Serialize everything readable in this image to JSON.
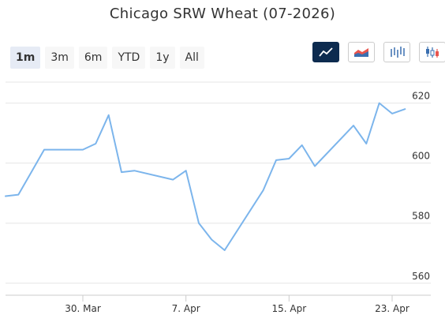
{
  "header": {
    "title": "Chicago SRW Wheat (07-2026)"
  },
  "range_selector": {
    "buttons": [
      {
        "label": "1m",
        "active": true
      },
      {
        "label": "3m",
        "active": false
      },
      {
        "label": "6m",
        "active": false
      },
      {
        "label": "YTD",
        "active": false
      },
      {
        "label": "1y",
        "active": false
      },
      {
        "label": "All",
        "active": false
      }
    ]
  },
  "chart_type_buttons": [
    {
      "icon": "line-chart-icon",
      "active": true
    },
    {
      "icon": "area-chart-icon",
      "active": false
    },
    {
      "icon": "ohlc-chart-icon",
      "active": false
    },
    {
      "icon": "candlestick-chart-icon",
      "active": false
    }
  ],
  "colors": {
    "line": "#7cb5ec",
    "active_button": "#0d2b4f",
    "grid": "#e6e6e6"
  },
  "chart_data": {
    "type": "line",
    "title": "Chicago SRW Wheat (07-2026)",
    "xlabel": "",
    "ylabel": "",
    "x_tick_labels": [
      "30. Mar",
      "7. Apr",
      "15. Apr",
      "23. Apr"
    ],
    "x_ticks": [
      "2026-03-30",
      "2026-04-07",
      "2026-04-15",
      "2026-04-23"
    ],
    "y_ticks": [
      560,
      580,
      600,
      620
    ],
    "xlim": [
      "2026-03-24",
      "2026-04-26"
    ],
    "ylim": [
      556,
      627
    ],
    "grid": true,
    "series": [
      {
        "name": "",
        "x": [
          "2026-03-24",
          "2026-03-25",
          "2026-03-26",
          "2026-03-27",
          "2026-03-30",
          "2026-03-31",
          "2026-04-01",
          "2026-04-02",
          "2026-04-03",
          "2026-04-06",
          "2026-04-07",
          "2026-04-08",
          "2026-04-09",
          "2026-04-10",
          "2026-04-13",
          "2026-04-14",
          "2026-04-15",
          "2026-04-16",
          "2026-04-17",
          "2026-04-20",
          "2026-04-21",
          "2026-04-22",
          "2026-04-23",
          "2026-04-24"
        ],
        "values": [
          589,
          589.5,
          597,
          604.5,
          604.5,
          606.5,
          616,
          597,
          597.5,
          594.5,
          597.5,
          580,
          574.5,
          571,
          591,
          601,
          601.5,
          606,
          599,
          612.5,
          606.5,
          620,
          616.5,
          618
        ]
      }
    ]
  }
}
